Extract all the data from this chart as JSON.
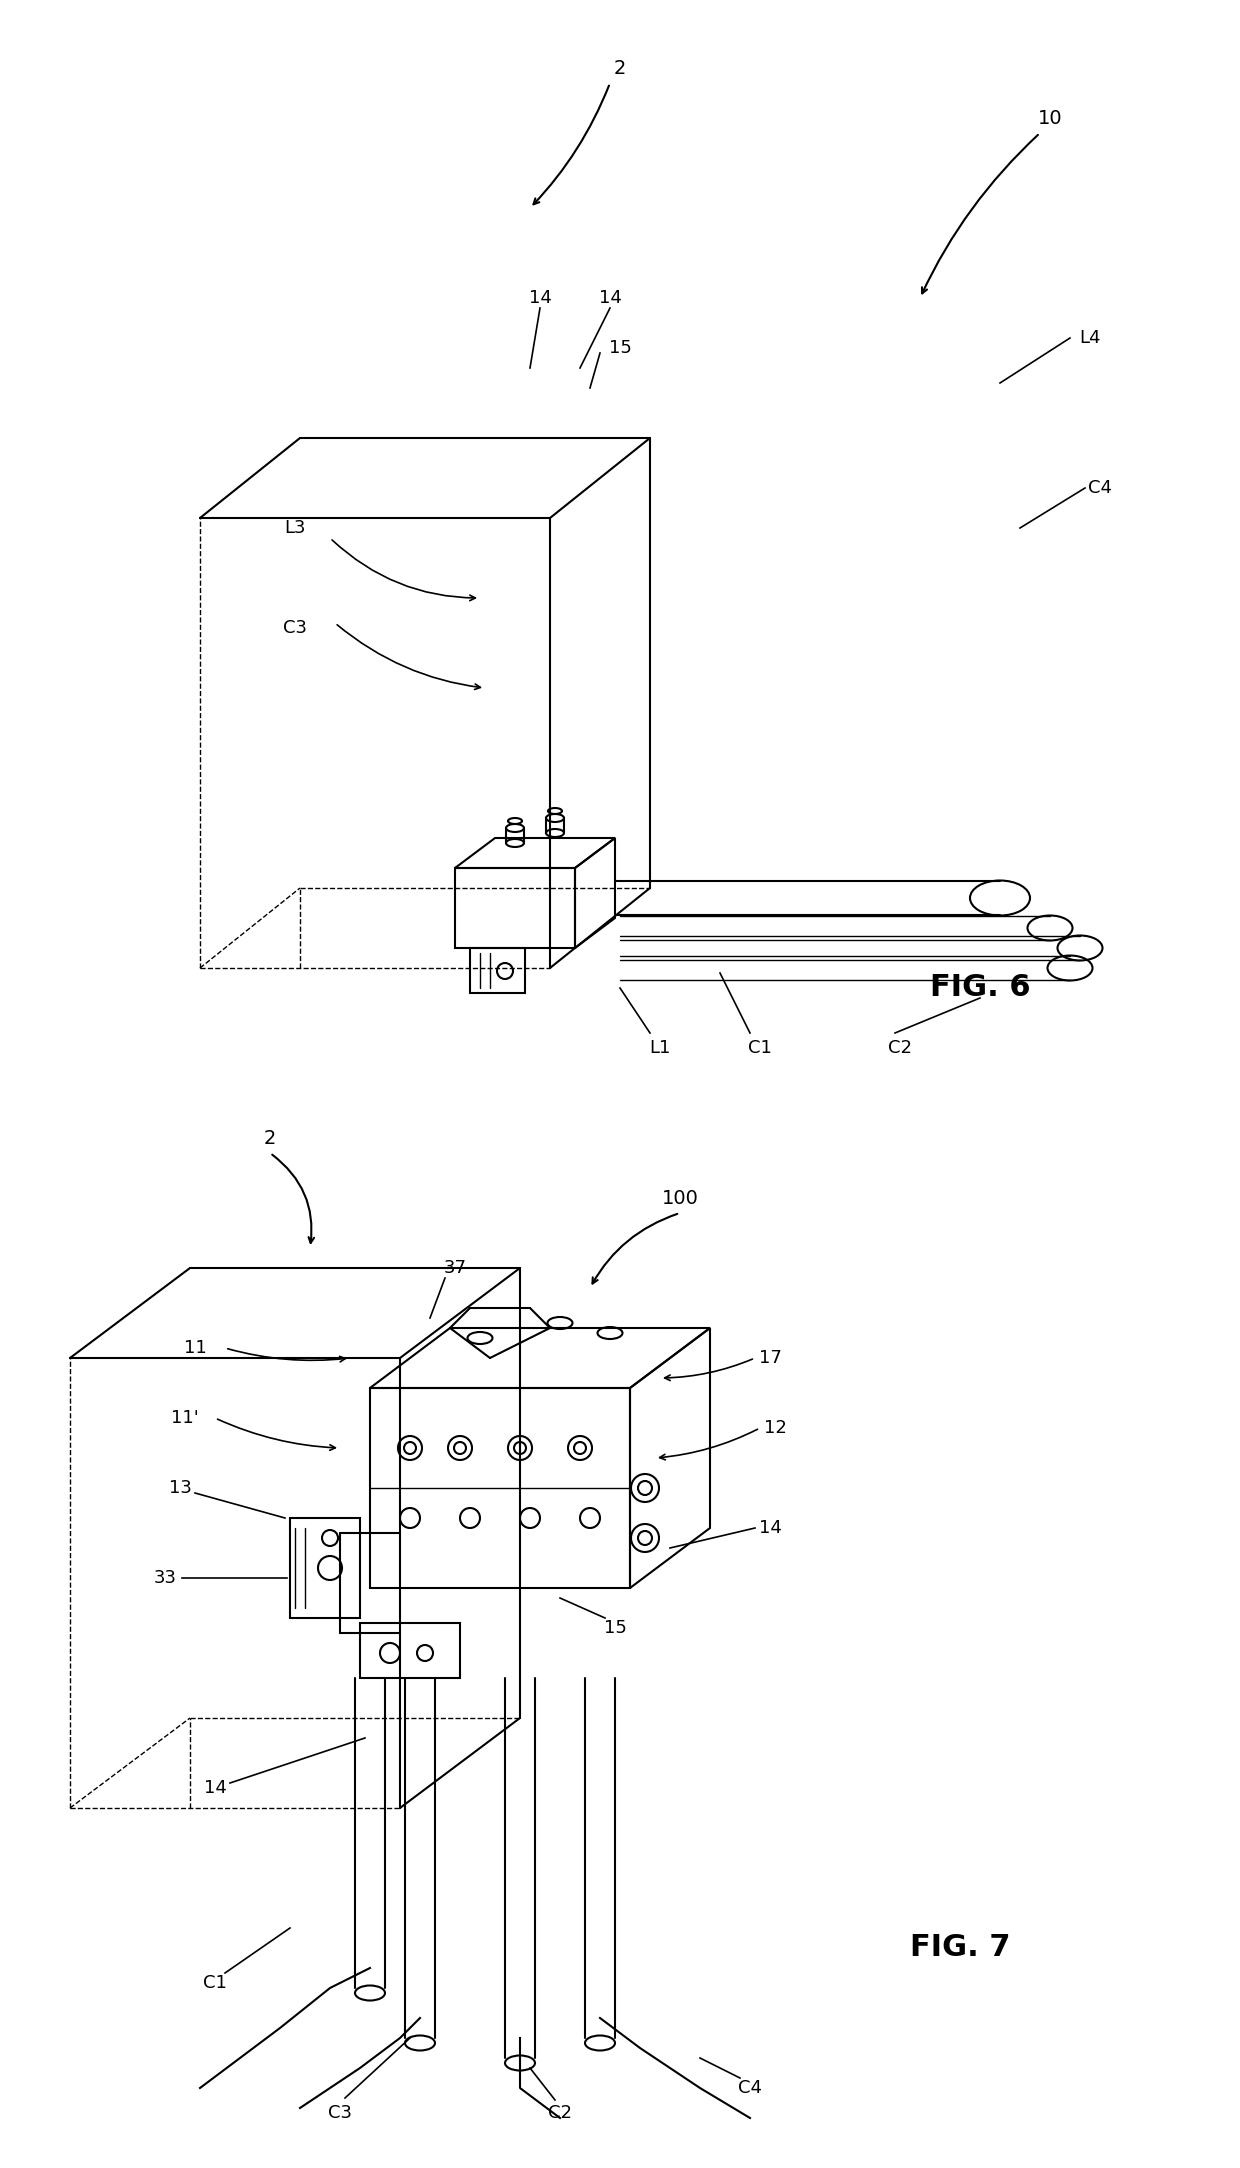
{
  "background_color": "#ffffff",
  "line_color": "#000000",
  "fig_width": 12.4,
  "fig_height": 21.68,
  "fig6_label": "FIG. 6",
  "fig7_label": "FIG. 7",
  "labels": {
    "fig6": {
      "2_top": "2",
      "10": "10",
      "14a": "14",
      "14b": "14",
      "15": "15",
      "L3": "L3",
      "L4": "L4",
      "C3": "C3",
      "C4": "C4",
      "L1": "L1",
      "C1": "C1",
      "C2": "C2"
    },
    "fig7": {
      "2": "2",
      "100": "100",
      "37": "37",
      "11": "11",
      "11p": "11'",
      "13": "13",
      "33": "33",
      "17": "17",
      "12": "12",
      "14a": "14",
      "14b": "14",
      "15": "15",
      "C1": "C1",
      "C2": "C2",
      "C3": "C3",
      "C4": "C4"
    }
  }
}
